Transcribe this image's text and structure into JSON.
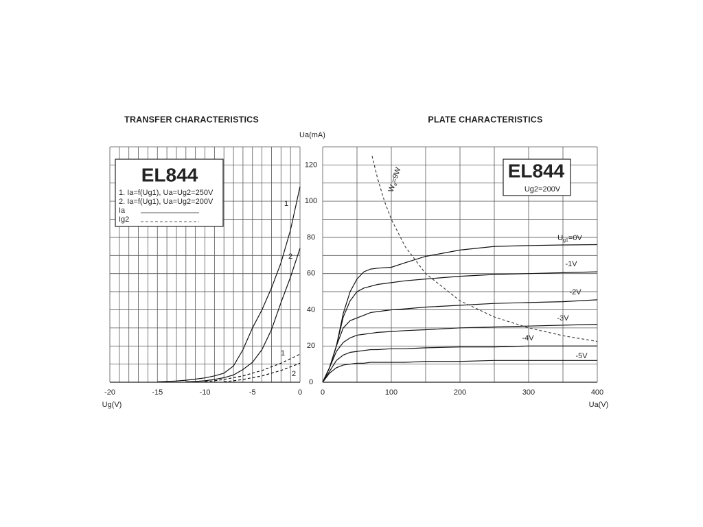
{
  "chart_data": [
    {
      "type": "line",
      "title": "TRANSFER CHARACTERISTICS",
      "xlabel": "Ug(V)",
      "ylabel": "Ua(mA)",
      "xlim": [
        -20,
        0
      ],
      "xticks": [
        -20,
        -15,
        -10,
        -5,
        0
      ],
      "ylim": [
        0,
        130
      ],
      "yticks": [
        0,
        20,
        40,
        60,
        80,
        100,
        120
      ],
      "xgrid_step": 1,
      "ygrid_step": 10,
      "grid": true,
      "box": {
        "title": "EL844",
        "lines": [
          "1. Ia=f(Ug1), Ua=Ug2=250V",
          "2. Ia=f(Ug1), Ua=Ug2=200V"
        ]
      },
      "legend": [
        {
          "label": "Ia",
          "dashed": false
        },
        {
          "label": "Ig2",
          "dashed": true
        }
      ],
      "x": [
        -15,
        -14,
        -13,
        -12,
        -11,
        -10,
        -9,
        -8,
        -7,
        -6,
        -5,
        -4,
        -3,
        -2,
        -1,
        0
      ],
      "series": [
        {
          "label": "1",
          "color": "#111111",
          "dashed": false,
          "values": [
            0.2,
            0.4,
            0.7,
            1.1,
            1.7,
            2.4,
            3.5,
            5,
            9,
            18,
            30,
            40,
            52,
            66,
            84,
            108
          ]
        },
        {
          "label": "2",
          "color": "#111111",
          "dashed": false,
          "values": [
            null,
            null,
            null,
            0.2,
            0.4,
            0.8,
            1.5,
            2.5,
            4,
            7,
            11,
            18,
            29,
            44,
            58,
            74
          ]
        },
        {
          "label": "1",
          "color": "#111111",
          "dashed": true,
          "values": [
            null,
            null,
            null,
            null,
            null,
            0.3,
            0.8,
            1.5,
            2.5,
            3.5,
            5,
            6.5,
            8.5,
            10.5,
            13,
            15.5
          ]
        },
        {
          "label": "2",
          "color": "#111111",
          "dashed": true,
          "values": [
            null,
            null,
            null,
            null,
            null,
            null,
            null,
            0.3,
            0.8,
            1.5,
            2.5,
            3.5,
            5,
            6.5,
            8.5,
            10.5
          ]
        }
      ]
    },
    {
      "type": "line",
      "title": "PLATE CHARACTERISTICS",
      "xlabel": "Ua(V)",
      "xlim": [
        0,
        400
      ],
      "xticks": [
        0,
        100,
        200,
        300,
        400
      ],
      "ylim": [
        0,
        130
      ],
      "xgrid_step": 50,
      "ygrid_step": 10,
      "grid": true,
      "box": {
        "title": "EL844",
        "lines": [
          "Ug2=200V"
        ]
      },
      "x": [
        0,
        10,
        20,
        30,
        40,
        50,
        60,
        70,
        80,
        100,
        120,
        150,
        200,
        250,
        300,
        350,
        400
      ],
      "series": [
        {
          "label_parts": [
            "U",
            "g1",
            "=0V"
          ],
          "color": "#111111",
          "dashed": false,
          "values": [
            0,
            8,
            20,
            38,
            50,
            57,
            61,
            62.5,
            63,
            63.5,
            66,
            69.5,
            73,
            75,
            75.5,
            75.8,
            76
          ]
        },
        {
          "label": "-1V",
          "color": "#111111",
          "dashed": false,
          "values": [
            0,
            8,
            20,
            36,
            45,
            50,
            52,
            53,
            54,
            55,
            56,
            57,
            58.5,
            59.5,
            60,
            60.5,
            61
          ]
        },
        {
          "label": "-2V",
          "color": "#111111",
          "dashed": false,
          "values": [
            0,
            8,
            20,
            30,
            34,
            35.5,
            37,
            38.5,
            39,
            40,
            40.5,
            41.5,
            42.5,
            43.5,
            44,
            44.5,
            45.5
          ]
        },
        {
          "label": "-3V",
          "color": "#111111",
          "dashed": false,
          "values": [
            0,
            8,
            17,
            22,
            24.5,
            26,
            26.5,
            27,
            27.5,
            28,
            28.5,
            29,
            30,
            30.5,
            31,
            31.5,
            32
          ]
        },
        {
          "label": "-4V",
          "color": "#111111",
          "dashed": false,
          "values": [
            0,
            6,
            12,
            15,
            16.5,
            17,
            17.5,
            18,
            18,
            18.5,
            18.5,
            19,
            19.5,
            19.5,
            20,
            20,
            20
          ]
        },
        {
          "label": "-5V",
          "color": "#111111",
          "dashed": false,
          "values": [
            0,
            5,
            8,
            9.5,
            10,
            10.5,
            10.5,
            11,
            11,
            11,
            11,
            11.5,
            11.5,
            12,
            12,
            12,
            12
          ]
        },
        {
          "label_parts": [
            "W",
            "a",
            "=9W"
          ],
          "color": "#444444",
          "dashed": true,
          "x": [
            72,
            80,
            90,
            100,
            120,
            150,
            200,
            250,
            300,
            350,
            400
          ],
          "values": [
            125,
            112.5,
            100,
            90,
            75,
            60,
            45,
            36,
            30,
            25.7,
            22.5
          ]
        }
      ]
    }
  ]
}
